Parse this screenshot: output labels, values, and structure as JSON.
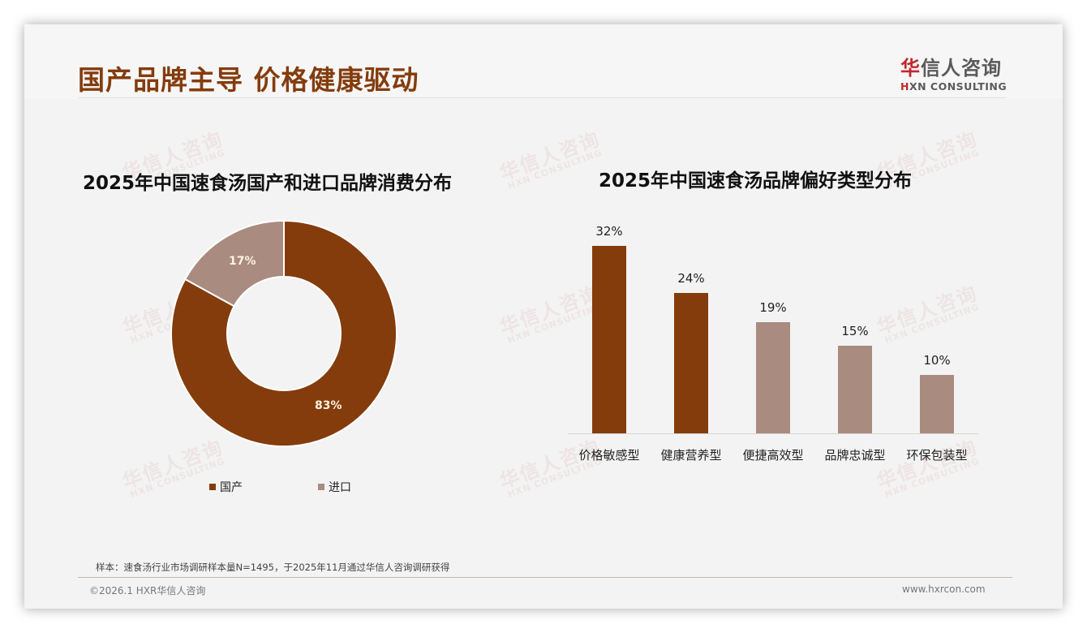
{
  "header": {
    "title": "国产品牌主导 价格健康驱动",
    "logo_cn_first": "华",
    "logo_cn_rest": "信人咨询",
    "logo_en_first": "H",
    "logo_en_rest": "XN CONSULTING"
  },
  "watermark": {
    "cn": "华信人咨询",
    "en": "HXN CONSULTING"
  },
  "colors": {
    "primary": "#843c0c",
    "secondary": "#a98b80",
    "title": "#843c0c",
    "background": "#f3f3f3"
  },
  "chart_data": [
    {
      "type": "pie",
      "variant": "donut",
      "title": "2025年中国速食汤国产和进口品牌消费分布",
      "categories": [
        "国产",
        "进口"
      ],
      "values": [
        83,
        17
      ],
      "labels": [
        "83%",
        "17%"
      ],
      "colors": [
        "#843c0c",
        "#a98b80"
      ],
      "legend_position": "bottom"
    },
    {
      "type": "bar",
      "title": "2025年中国速食汤品牌偏好类型分布",
      "categories": [
        "价格敏感型",
        "健康营养型",
        "便捷高效型",
        "品牌忠诚型",
        "环保包装型"
      ],
      "values": [
        32,
        24,
        19,
        15,
        10
      ],
      "labels": [
        "32%",
        "24%",
        "19%",
        "15%",
        "10%"
      ],
      "colors": [
        "#843c0c",
        "#843c0c",
        "#a98b80",
        "#a98b80",
        "#a98b80"
      ],
      "xlabel": "",
      "ylabel": "",
      "ylim": [
        0,
        35
      ],
      "grid": false,
      "y_axis_visible": false
    }
  ],
  "footer": {
    "note": "样本：速食汤行业市场调研样本量N=1495，于2025年11月通过华信人咨询调研获得",
    "copyright": "©2026.1 HXR华信人咨询",
    "website": "www.hxrcon.com"
  }
}
